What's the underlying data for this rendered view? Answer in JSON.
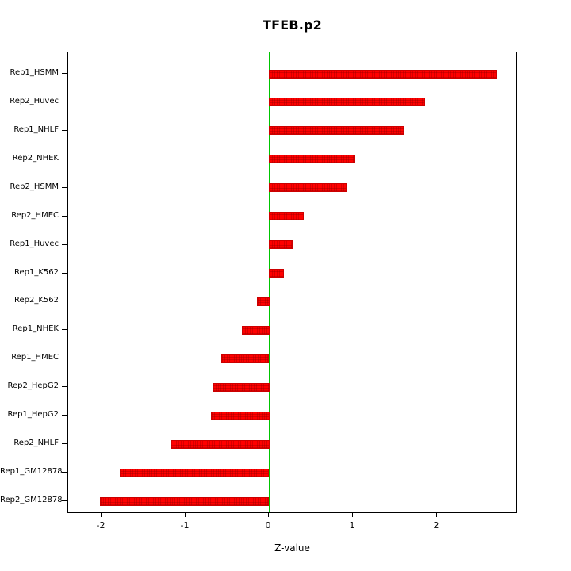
{
  "chart_data": {
    "type": "bar",
    "orientation": "horizontal",
    "title": "TFEB.p2",
    "xlabel": "Z-value",
    "ylabel": "",
    "categories": [
      "Rep1_HSMM",
      "Rep2_Huvec",
      "Rep1_NHLF",
      "Rep2_NHEK",
      "Rep2_HSMM",
      "Rep2_HMEC",
      "Rep1_Huvec",
      "Rep1_K562",
      "Rep2_K562",
      "Rep1_NHEK",
      "Rep1_HMEC",
      "Rep2_HepG2",
      "Rep1_HepG2",
      "Rep2_NHLF",
      "Rep1_GM12878",
      "Rep2_GM12878"
    ],
    "values": [
      2.73,
      1.87,
      1.62,
      1.03,
      0.93,
      0.42,
      0.28,
      0.18,
      -0.15,
      -0.33,
      -0.57,
      -0.68,
      -0.7,
      -1.18,
      -1.78,
      -2.02
    ],
    "xlim": [
      -2.4,
      2.95
    ],
    "xticks": [
      -2,
      -1,
      0,
      1,
      2
    ],
    "grid": false,
    "legend": "none",
    "bar_color": "#ff0000",
    "bar_edge_color": "#cc0000",
    "zero_line_color": "#00c400",
    "axis_color": "#000000"
  }
}
